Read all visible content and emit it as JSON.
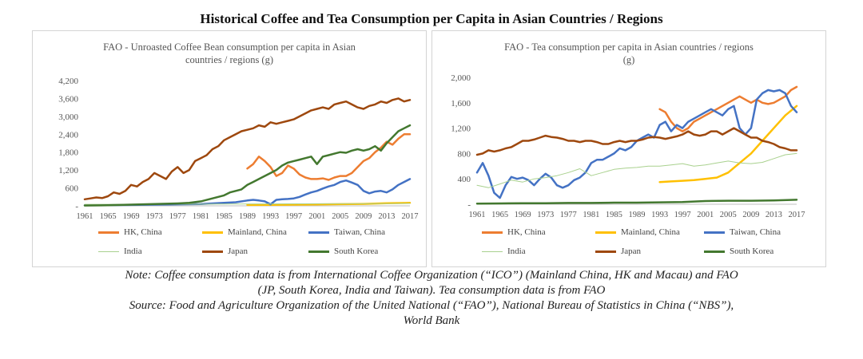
{
  "main_title": "Historical Coffee and Tea Consumption per Capita in Asian Countries / Regions",
  "colors": {
    "hk": "#ed7d31",
    "mainland": "#ffc000",
    "taiwan": "#4472c4",
    "india": "#a9d18e",
    "japan": "#9e480e",
    "south_korea": "#43782f"
  },
  "chart_data": [
    {
      "type": "line",
      "title_line1": "FAO - Unroasted Coffee Bean consumption per capita in Asian",
      "title_line2": "countries / regions (g)",
      "xlabel": "",
      "ylabel": "",
      "ylim": [
        0,
        4200
      ],
      "yticks": [
        "4,200",
        "3,600",
        "3,000",
        "2,400",
        "1,800",
        "1,200",
        "600",
        "-"
      ],
      "ytick_values": [
        4200,
        3600,
        3000,
        2400,
        1800,
        1200,
        600,
        0
      ],
      "xticks": [
        "1961",
        "1965",
        "1969",
        "1973",
        "1977",
        "1981",
        "1985",
        "1989",
        "1993",
        "1997",
        "2001",
        "2005",
        "2009",
        "2013",
        "2017"
      ],
      "xrange": [
        1961,
        2017
      ],
      "grid": false,
      "legend_position": "bottom",
      "series": [
        {
          "name": "HK, China",
          "color_key": "hk",
          "width": 2.5,
          "x": [
            1989,
            1990,
            1991,
            1992,
            1993,
            1994,
            1995,
            1996,
            1997,
            1998,
            1999,
            2000,
            2001,
            2002,
            2003,
            2004,
            2005,
            2006,
            2007,
            2008,
            2009,
            2010,
            2011,
            2012,
            2013,
            2014,
            2015,
            2016,
            2017
          ],
          "y": [
            1250,
            1400,
            1650,
            1500,
            1300,
            1000,
            1100,
            1350,
            1250,
            1050,
            950,
            900,
            900,
            920,
            870,
            950,
            1000,
            1000,
            1100,
            1300,
            1500,
            1600,
            1800,
            1950,
            2150,
            2050,
            2250,
            2400,
            2400
          ]
        },
        {
          "name": "Mainland, China",
          "color_key": "mainland",
          "width": 2.5,
          "x": [
            1989,
            1993,
            1997,
            2001,
            2005,
            2009,
            2013,
            2017
          ],
          "y": [
            30,
            35,
            40,
            45,
            55,
            65,
            85,
            100
          ]
        },
        {
          "name": "Taiwan, China",
          "color_key": "taiwan",
          "width": 2.5,
          "x": [
            1961,
            1965,
            1969,
            1973,
            1977,
            1981,
            1985,
            1987,
            1989,
            1990,
            1991,
            1992,
            1993,
            1994,
            1995,
            1996,
            1997,
            1998,
            1999,
            2000,
            2001,
            2002,
            2003,
            2004,
            2005,
            2006,
            2007,
            2008,
            2009,
            2010,
            2011,
            2012,
            2013,
            2014,
            2015,
            2016,
            2017
          ],
          "y": [
            20,
            25,
            30,
            40,
            50,
            60,
            100,
            120,
            180,
            200,
            180,
            150,
            50,
            200,
            220,
            230,
            250,
            300,
            380,
            450,
            500,
            580,
            650,
            700,
            800,
            850,
            780,
            700,
            500,
            420,
            480,
            500,
            450,
            550,
            700,
            800,
            900
          ]
        },
        {
          "name": "India",
          "color_key": "india",
          "width": 1,
          "x": [
            1961,
            1969,
            1977,
            1985,
            1993,
            2001,
            2009,
            2017
          ],
          "y": [
            50,
            52,
            55,
            60,
            65,
            70,
            70,
            80
          ]
        },
        {
          "name": "Japan",
          "color_key": "japan",
          "width": 2.5,
          "x": [
            1961,
            1962,
            1963,
            1964,
            1965,
            1966,
            1967,
            1968,
            1969,
            1970,
            1971,
            1972,
            1973,
            1974,
            1975,
            1976,
            1977,
            1978,
            1979,
            1980,
            1981,
            1982,
            1983,
            1984,
            1985,
            1986,
            1987,
            1988,
            1989,
            1990,
            1991,
            1992,
            1993,
            1994,
            1995,
            1996,
            1997,
            1998,
            1999,
            2000,
            2001,
            2002,
            2003,
            2004,
            2005,
            2006,
            2007,
            2008,
            2009,
            2010,
            2011,
            2012,
            2013,
            2014,
            2015,
            2016,
            2017
          ],
          "y": [
            220,
            250,
            280,
            260,
            320,
            450,
            400,
            500,
            700,
            650,
            800,
            900,
            1100,
            1000,
            900,
            1150,
            1300,
            1100,
            1200,
            1500,
            1600,
            1700,
            1900,
            2000,
            2200,
            2300,
            2400,
            2500,
            2550,
            2600,
            2700,
            2650,
            2800,
            2750,
            2800,
            2850,
            2900,
            3000,
            3100,
            3200,
            3250,
            3300,
            3250,
            3400,
            3450,
            3500,
            3400,
            3300,
            3250,
            3350,
            3400,
            3500,
            3450,
            3550,
            3600,
            3500,
            3550
          ]
        },
        {
          "name": "South Korea",
          "color_key": "south_korea",
          "width": 2.5,
          "x": [
            1961,
            1965,
            1969,
            1973,
            1977,
            1979,
            1981,
            1983,
            1985,
            1986,
            1987,
            1988,
            1989,
            1990,
            1991,
            1992,
            1993,
            1994,
            1995,
            1996,
            1997,
            1998,
            1999,
            2000,
            2001,
            2002,
            2003,
            2004,
            2005,
            2006,
            2007,
            2008,
            2009,
            2010,
            2011,
            2012,
            2013,
            2014,
            2015,
            2016,
            2017
          ],
          "y": [
            10,
            20,
            40,
            60,
            80,
            100,
            150,
            250,
            350,
            450,
            500,
            550,
            700,
            800,
            900,
            1000,
            1100,
            1200,
            1350,
            1450,
            1500,
            1550,
            1600,
            1650,
            1400,
            1650,
            1700,
            1750,
            1800,
            1780,
            1850,
            1900,
            1850,
            1900,
            2000,
            1850,
            2100,
            2300,
            2500,
            2600,
            2700
          ]
        }
      ],
      "legend": [
        {
          "name": "HK, China",
          "color_key": "hk",
          "row": 0,
          "col": 0
        },
        {
          "name": "Mainland, China",
          "color_key": "mainland",
          "row": 0,
          "col": 1
        },
        {
          "name": "Taiwan, China",
          "color_key": "taiwan",
          "row": 0,
          "col": 2
        },
        {
          "name": "India",
          "color_key": "india",
          "row": 1,
          "col": 0,
          "thin": true
        },
        {
          "name": "Japan",
          "color_key": "japan",
          "row": 1,
          "col": 1
        },
        {
          "name": "South Korea",
          "color_key": "south_korea",
          "row": 1,
          "col": 2
        }
      ]
    },
    {
      "type": "line",
      "title_line1": "FAO - Tea consumption per capita in Asian countries / regions",
      "title_line2": "(g)",
      "xlabel": "",
      "ylabel": "",
      "ylim": [
        0,
        2000
      ],
      "yticks": [
        "2,000",
        "1,600",
        "1,200",
        "800",
        "400",
        "-"
      ],
      "ytick_values": [
        2000,
        1600,
        1200,
        800,
        400,
        0
      ],
      "xticks": [
        "1961",
        "1965",
        "1969",
        "1973",
        "1977",
        "1981",
        "1985",
        "1989",
        "1993",
        "1997",
        "2001",
        "2005",
        "2009",
        "2013",
        "2017"
      ],
      "xrange": [
        1961,
        2017
      ],
      "grid": false,
      "legend_position": "bottom",
      "series": [
        {
          "name": "HK, China",
          "color_key": "hk",
          "width": 2.5,
          "x": [
            1993,
            1994,
            1995,
            1996,
            1997,
            1998,
            1999,
            2000,
            2001,
            2002,
            2003,
            2004,
            2005,
            2006,
            2007,
            2008,
            2009,
            2010,
            2011,
            2012,
            2013,
            2014,
            2015,
            2016,
            2017
          ],
          "y": [
            1500,
            1450,
            1300,
            1200,
            1150,
            1200,
            1300,
            1350,
            1400,
            1450,
            1500,
            1550,
            1600,
            1650,
            1700,
            1650,
            1600,
            1650,
            1600,
            1580,
            1600,
            1650,
            1700,
            1800,
            1850
          ]
        },
        {
          "name": "Mainland, China",
          "color_key": "mainland",
          "width": 2.5,
          "x": [
            1993,
            1995,
            1997,
            1999,
            2001,
            2003,
            2005,
            2007,
            2009,
            2011,
            2013,
            2015,
            2017
          ],
          "y": [
            350,
            360,
            370,
            380,
            400,
            420,
            500,
            650,
            800,
            1000,
            1200,
            1400,
            1550
          ]
        },
        {
          "name": "Taiwan, China",
          "color_key": "taiwan",
          "width": 2.5,
          "x": [
            1961,
            1962,
            1963,
            1964,
            1965,
            1966,
            1967,
            1968,
            1969,
            1970,
            1971,
            1972,
            1973,
            1974,
            1975,
            1976,
            1977,
            1978,
            1979,
            1980,
            1981,
            1982,
            1983,
            1984,
            1985,
            1986,
            1987,
            1988,
            1989,
            1990,
            1991,
            1992,
            1993,
            1994,
            1995,
            1996,
            1997,
            1998,
            1999,
            2000,
            2001,
            2002,
            2003,
            2004,
            2005,
            2006,
            2007,
            2008,
            2009,
            2010,
            2011,
            2012,
            2013,
            2014,
            2015,
            2016,
            2017
          ],
          "y": [
            500,
            650,
            450,
            180,
            100,
            300,
            430,
            400,
            420,
            380,
            300,
            400,
            480,
            420,
            300,
            260,
            300,
            380,
            420,
            500,
            650,
            700,
            700,
            750,
            800,
            880,
            850,
            900,
            1000,
            1050,
            1100,
            1050,
            1250,
            1300,
            1150,
            1250,
            1200,
            1300,
            1350,
            1400,
            1450,
            1500,
            1450,
            1400,
            1500,
            1550,
            1200,
            1100,
            1200,
            1650,
            1750,
            1800,
            1780,
            1800,
            1750,
            1550,
            1450
          ]
        },
        {
          "name": "India",
          "color_key": "india",
          "width": 1,
          "x": [
            1961,
            1963,
            1965,
            1967,
            1969,
            1971,
            1973,
            1975,
            1977,
            1979,
            1981,
            1983,
            1985,
            1987,
            1989,
            1991,
            1993,
            1995,
            1997,
            1999,
            2001,
            2003,
            2005,
            2007,
            2009,
            2011,
            2013,
            2015,
            2017
          ],
          "y": [
            300,
            260,
            320,
            380,
            350,
            400,
            420,
            450,
            500,
            560,
            450,
            500,
            550,
            570,
            580,
            600,
            600,
            620,
            640,
            600,
            620,
            650,
            680,
            650,
            640,
            660,
            720,
            780,
            800
          ]
        },
        {
          "name": "Japan",
          "color_key": "japan",
          "width": 2.5,
          "x": [
            1961,
            1962,
            1963,
            1964,
            1965,
            1966,
            1967,
            1968,
            1969,
            1970,
            1971,
            1972,
            1973,
            1974,
            1975,
            1976,
            1977,
            1978,
            1979,
            1980,
            1981,
            1982,
            1983,
            1984,
            1985,
            1986,
            1987,
            1988,
            1989,
            1990,
            1991,
            1992,
            1993,
            1994,
            1995,
            1996,
            1997,
            1998,
            1999,
            2000,
            2001,
            2002,
            2003,
            2004,
            2005,
            2006,
            2007,
            2008,
            2009,
            2010,
            2011,
            2012,
            2013,
            2014,
            2015,
            2016,
            2017
          ],
          "y": [
            780,
            800,
            850,
            830,
            850,
            880,
            900,
            950,
            1000,
            1000,
            1020,
            1050,
            1080,
            1060,
            1050,
            1030,
            1000,
            1000,
            980,
            1000,
            1000,
            980,
            950,
            950,
            980,
            1000,
            980,
            1000,
            1000,
            1020,
            1050,
            1060,
            1050,
            1030,
            1050,
            1070,
            1100,
            1150,
            1100,
            1080,
            1100,
            1150,
            1150,
            1100,
            1150,
            1200,
            1150,
            1100,
            1050,
            1050,
            1000,
            980,
            950,
            900,
            880,
            850,
            850
          ]
        },
        {
          "name": "South Korea",
          "color_key": "south_korea",
          "width": 2.5,
          "x": [
            1961,
            1965,
            1969,
            1973,
            1977,
            1981,
            1985,
            1989,
            1993,
            1997,
            2001,
            2005,
            2009,
            2013,
            2017
          ],
          "y": [
            10,
            12,
            15,
            15,
            20,
            20,
            25,
            25,
            30,
            35,
            50,
            55,
            55,
            60,
            70
          ]
        }
      ],
      "legend": [
        {
          "name": "HK, China",
          "color_key": "hk",
          "row": 0,
          "col": 0
        },
        {
          "name": "Mainland, China",
          "color_key": "mainland",
          "row": 0,
          "col": 1
        },
        {
          "name": "Taiwan, China",
          "color_key": "taiwan",
          "row": 0,
          "col": 2
        },
        {
          "name": "India",
          "color_key": "india",
          "row": 1,
          "col": 0,
          "thin": true
        },
        {
          "name": "Japan",
          "color_key": "japan",
          "row": 1,
          "col": 1
        },
        {
          "name": "South Korea",
          "color_key": "south_korea",
          "row": 1,
          "col": 2
        }
      ]
    }
  ],
  "notes": {
    "line1": "Note: Coffee consumption data is from International Coffee Organization (“ICO”) (Mainland China, HK and Macau) and FAO",
    "line2": "(JP, South Korea, India and Taiwan). Tea consumption data is from FAO",
    "line3": "Source: Food and Agriculture Organization of the United National (“FAO”), National Bureau of Statistics in China (“NBS”),",
    "line4": "World Bank"
  }
}
